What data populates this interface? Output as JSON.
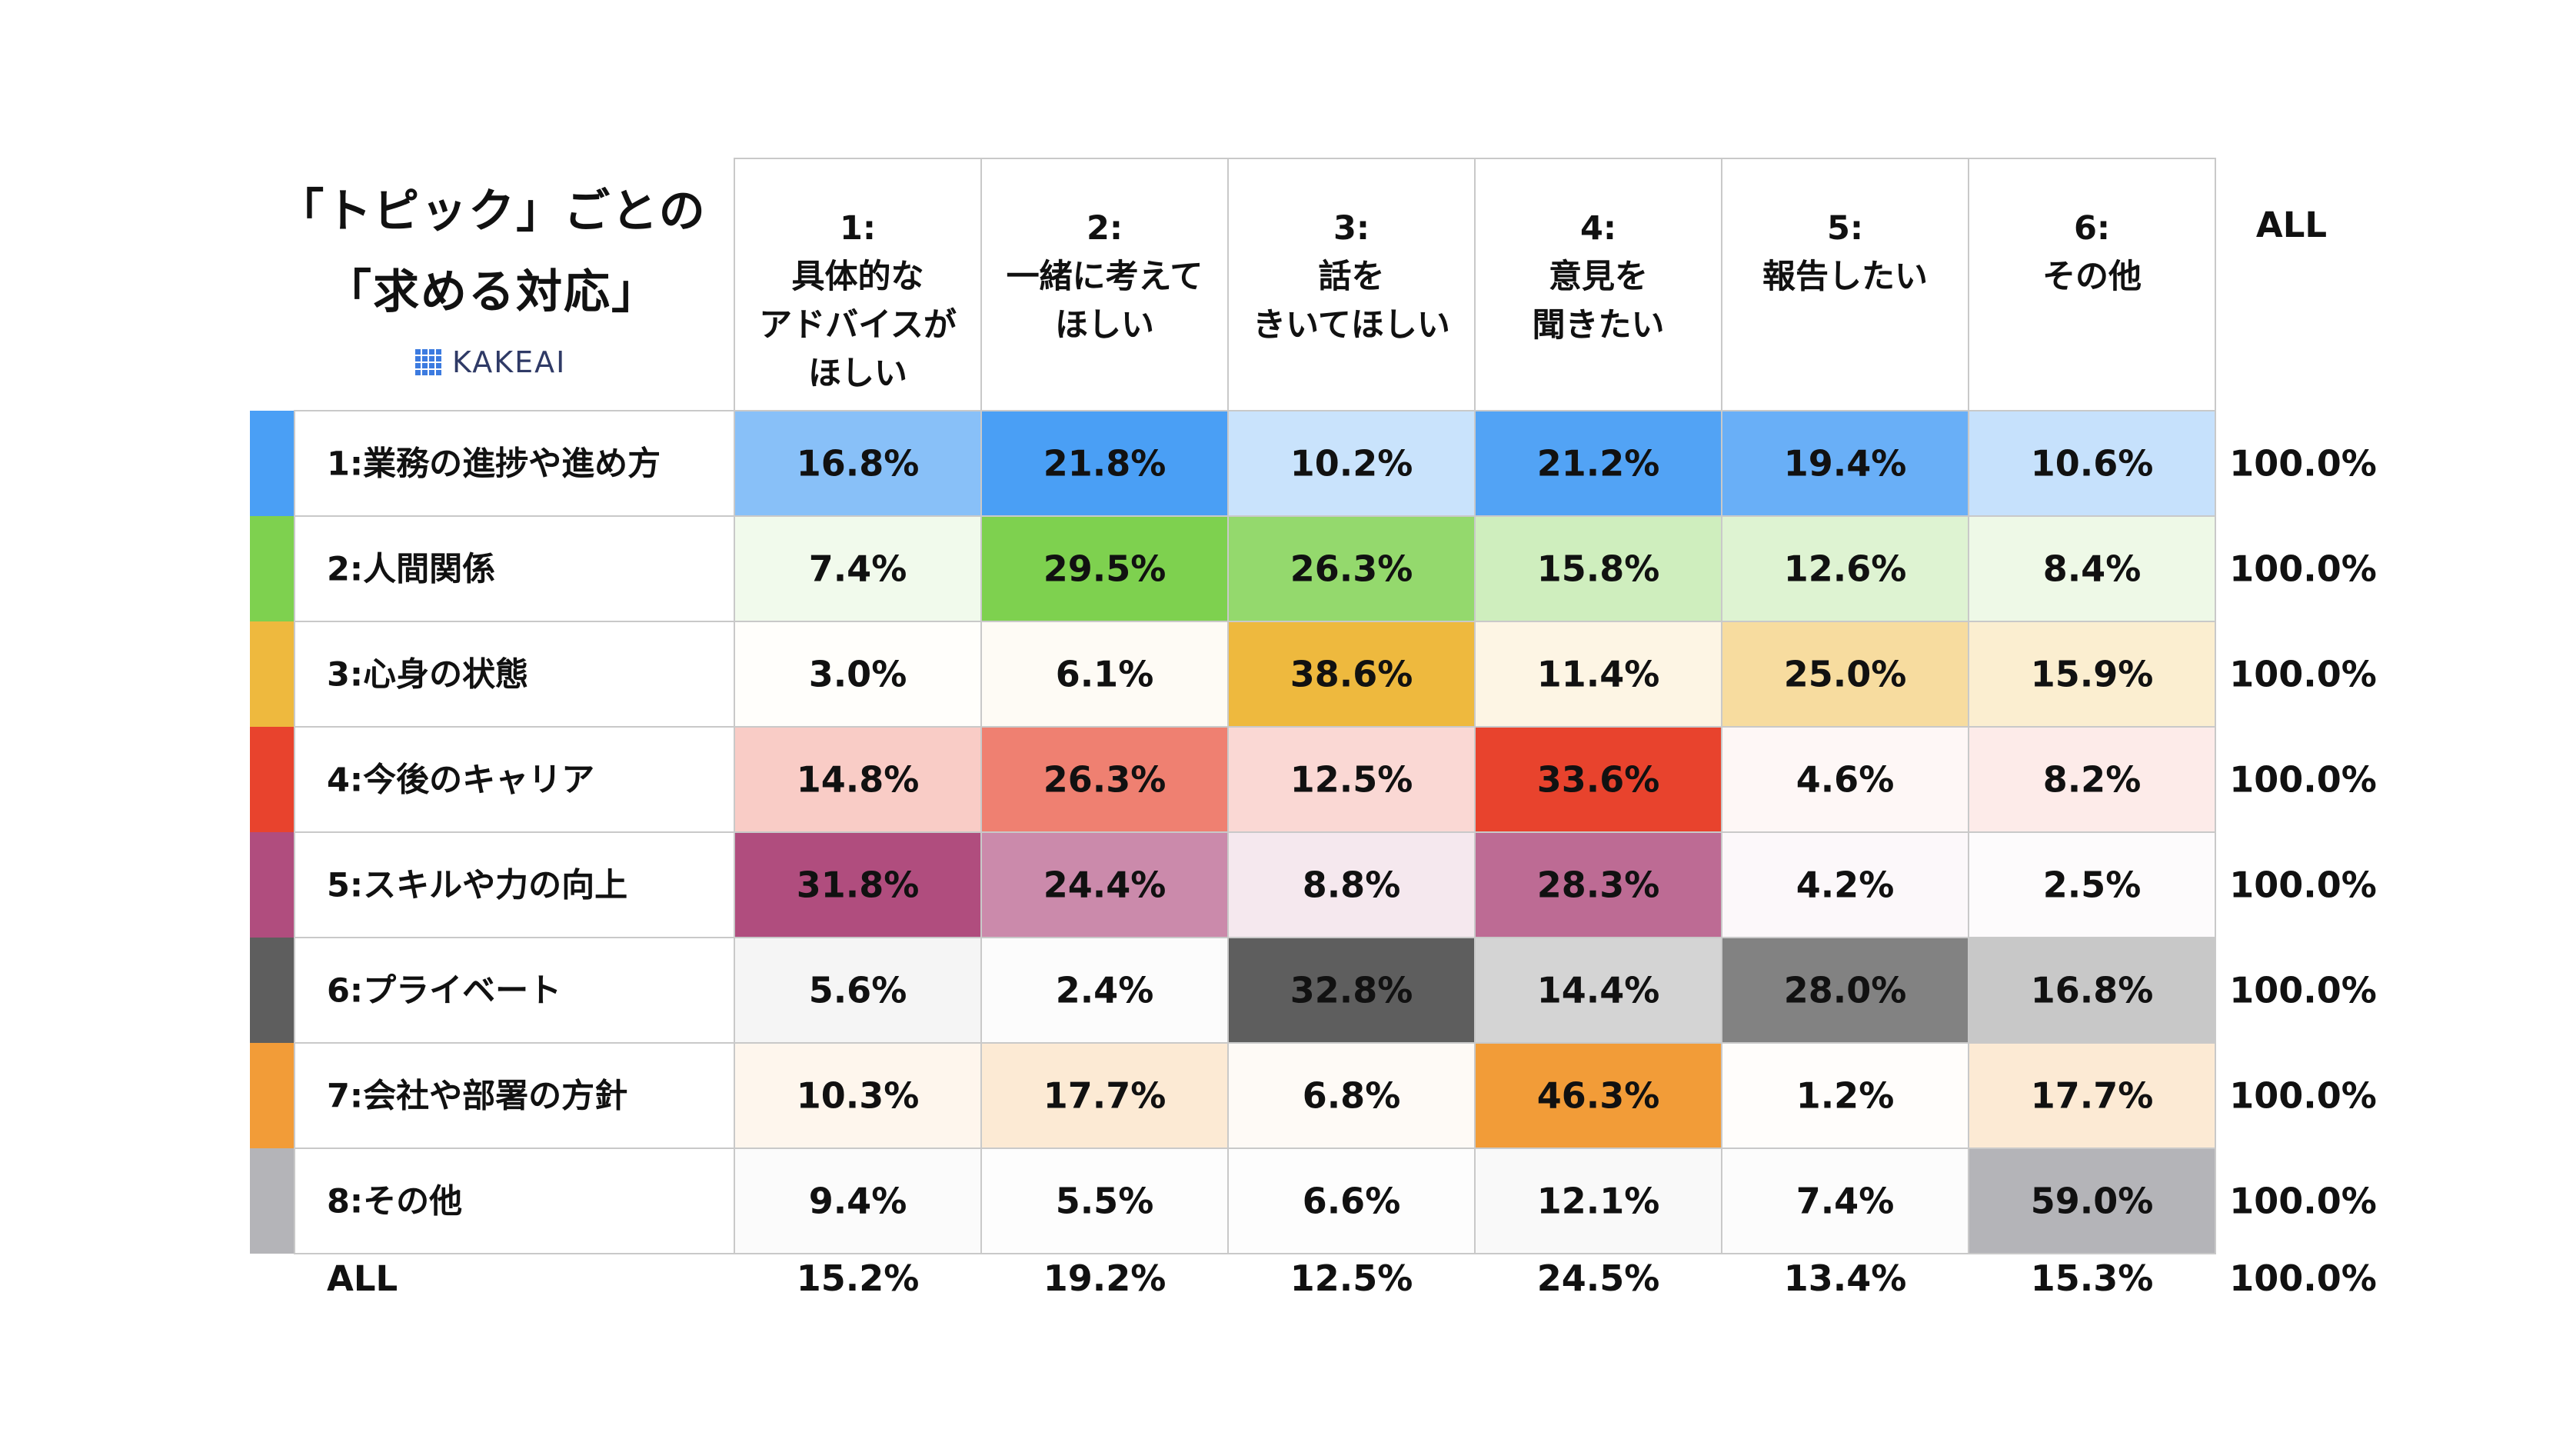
{
  "title": {
    "line1": "「トピック」ごとの",
    "line2": "「求める対応」",
    "logo": "KAKEAI"
  },
  "chart_data": {
    "type": "table",
    "title": "「トピック」ごとの「求める対応」",
    "columns": [
      {
        "num": "1:",
        "label": "具体的な\nアドバイスが\nほしい"
      },
      {
        "num": "2:",
        "label": "一緒に考えて\nほしい"
      },
      {
        "num": "3:",
        "label": "話を\nきいてほしい"
      },
      {
        "num": "4:",
        "label": "意見を\n聞きたい"
      },
      {
        "num": "5:",
        "label": "報告したい"
      },
      {
        "num": "6:",
        "label": "その他"
      }
    ],
    "all_label": "ALL",
    "rows": [
      {
        "label": "1:業務の進捗や進め方",
        "color": "#4a9ff5",
        "values": [
          "16.8%",
          "21.8%",
          "10.2%",
          "21.2%",
          "19.4%",
          "10.6%"
        ],
        "numeric": [
          16.8,
          21.8,
          10.2,
          21.2,
          19.4,
          10.6
        ],
        "all": "100.0%"
      },
      {
        "label": "2:人間関係",
        "color": "#7ed14f",
        "values": [
          "7.4%",
          "29.5%",
          "26.3%",
          "15.8%",
          "12.6%",
          "8.4%"
        ],
        "numeric": [
          7.4,
          29.5,
          26.3,
          15.8,
          12.6,
          8.4
        ],
        "all": "100.0%"
      },
      {
        "label": "3:心身の状態",
        "color": "#eeb93e",
        "values": [
          "3.0%",
          "6.1%",
          "38.6%",
          "11.4%",
          "25.0%",
          "15.9%"
        ],
        "numeric": [
          3.0,
          6.1,
          38.6,
          11.4,
          25.0,
          15.9
        ],
        "all": "100.0%"
      },
      {
        "label": "4:今後のキャリア",
        "color": "#e8432d",
        "values": [
          "14.8%",
          "26.3%",
          "12.5%",
          "33.6%",
          "4.6%",
          "8.2%"
        ],
        "numeric": [
          14.8,
          26.3,
          12.5,
          33.6,
          4.6,
          8.2
        ],
        "all": "100.0%"
      },
      {
        "label": "5:スキルや力の向上",
        "color": "#b04d7e",
        "values": [
          "31.8%",
          "24.4%",
          "8.8%",
          "28.3%",
          "4.2%",
          "2.5%"
        ],
        "numeric": [
          31.8,
          24.4,
          8.8,
          28.3,
          4.2,
          2.5
        ],
        "all": "100.0%"
      },
      {
        "label": "6:プライベート",
        "color": "#5e5e5e",
        "values": [
          "5.6%",
          "2.4%",
          "32.8%",
          "14.4%",
          "28.0%",
          "16.8%"
        ],
        "numeric": [
          5.6,
          2.4,
          32.8,
          14.4,
          28.0,
          16.8
        ],
        "all": "100.0%"
      },
      {
        "label": "7:会社や部署の方針",
        "color": "#f29c38",
        "values": [
          "10.3%",
          "17.7%",
          "6.8%",
          "46.3%",
          "1.2%",
          "17.7%"
        ],
        "numeric": [
          10.3,
          17.7,
          6.8,
          46.3,
          1.2,
          17.7
        ],
        "all": "100.0%"
      },
      {
        "label": "8:その他",
        "color": "#b4b4b8",
        "values": [
          "9.4%",
          "5.5%",
          "6.6%",
          "12.1%",
          "7.4%",
          "59.0%"
        ],
        "numeric": [
          9.4,
          5.5,
          6.6,
          12.1,
          7.4,
          59.0
        ],
        "all": "100.0%"
      }
    ],
    "total_row": {
      "label": "ALL",
      "values": [
        "15.2%",
        "19.2%",
        "12.5%",
        "24.5%",
        "13.4%",
        "15.3%"
      ],
      "all": "100.0%"
    },
    "heat_max": 46.3
  }
}
